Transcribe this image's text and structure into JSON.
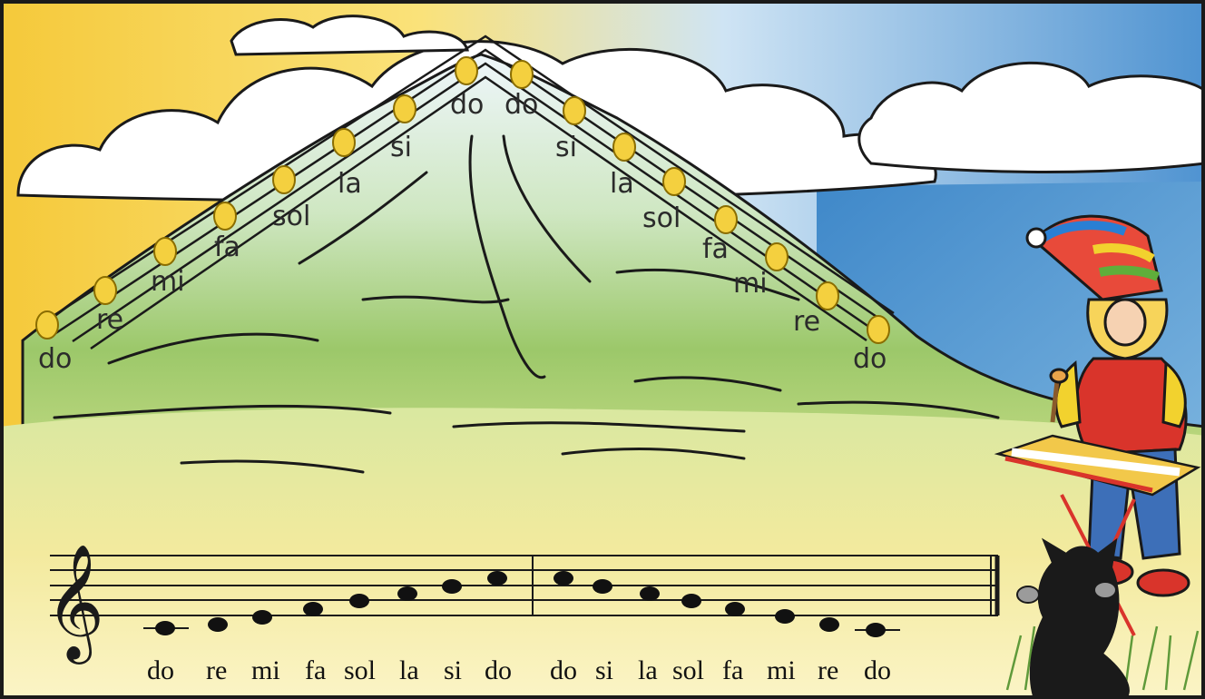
{
  "scene": {
    "colors": {
      "sky_blue": "#6aa6d8",
      "sun_yellow": "#f7d64a",
      "snow": "#eef6fb",
      "grass_green": "#9cc86a",
      "meadow_yellow": "#f3ea9e",
      "note_yellow": "#f4d03f",
      "outline": "#1a1a1a"
    },
    "mountain_left_labels": [
      "do",
      "re",
      "mi",
      "fa",
      "sol",
      "la",
      "si",
      "do"
    ],
    "mountain_right_labels": [
      "do",
      "si",
      "la",
      "sol",
      "fa",
      "mi",
      "re",
      "do"
    ],
    "staff_ascending_labels": [
      "do",
      "re",
      "mi",
      "fa",
      "sol",
      "la",
      "si",
      "do"
    ],
    "staff_descending_labels": [
      "do",
      "si",
      "la",
      "sol",
      "fa",
      "mi",
      "re",
      "do"
    ],
    "icons": [
      "treble-clef-icon",
      "musician-gnome",
      "black-cat",
      "xylophone"
    ]
  }
}
